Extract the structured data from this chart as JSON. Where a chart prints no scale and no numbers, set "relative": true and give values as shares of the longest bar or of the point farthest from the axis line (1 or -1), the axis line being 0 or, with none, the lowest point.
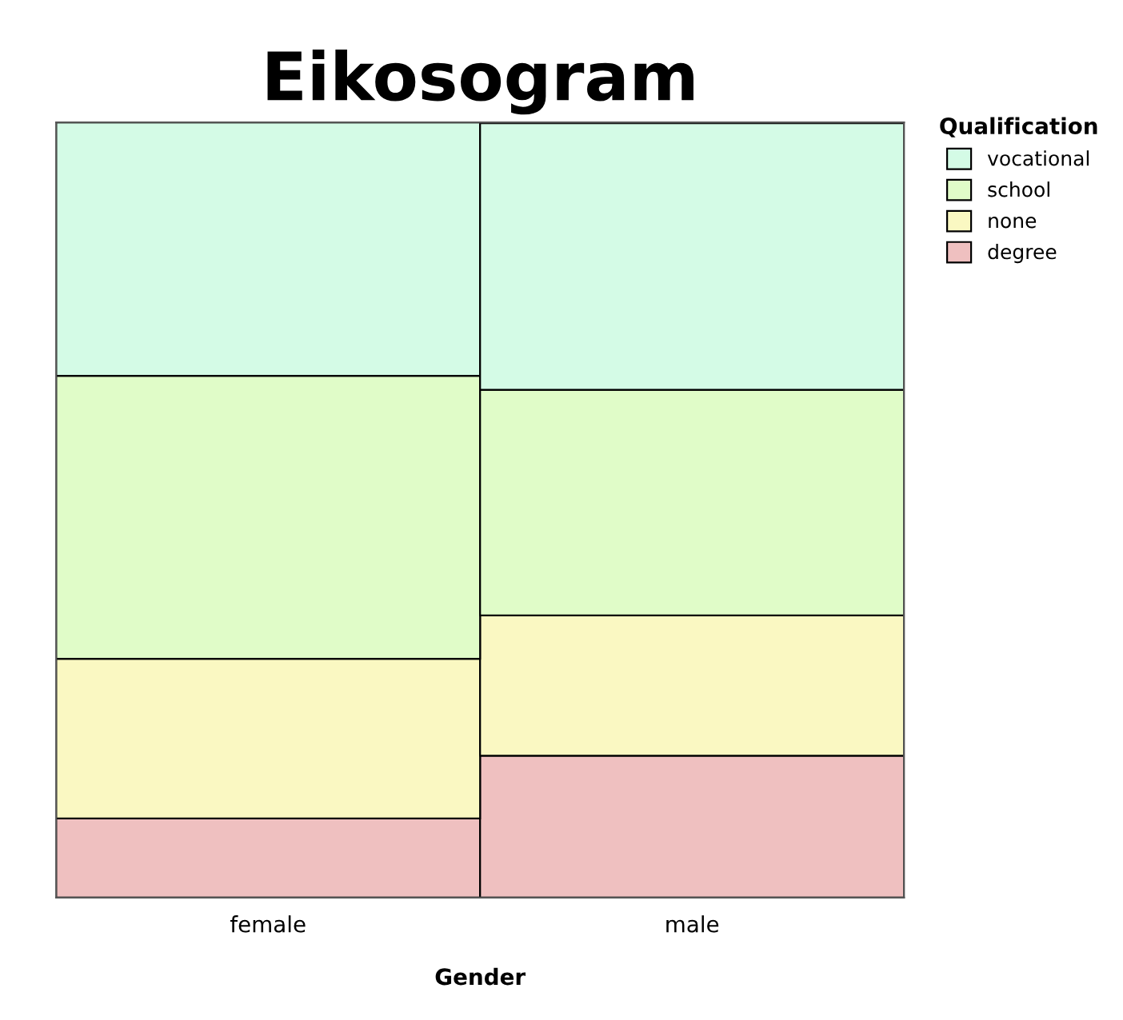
{
  "chart_data": {
    "type": "bar",
    "title": "Eikosogram",
    "xlabel": "Gender",
    "legend_title": "Qualification",
    "categories": [
      "female",
      "male"
    ],
    "stacked": true,
    "relative": true,
    "legend": "top right",
    "grid": false,
    "series": [
      {
        "name": "degree",
        "color": "#efc0c0",
        "values": [
          0.102,
          0.183
        ]
      },
      {
        "name": "none",
        "color": "#faf8c2",
        "values": [
          0.206,
          0.181
        ]
      },
      {
        "name": "school",
        "color": "#e0fcc8",
        "values": [
          0.365,
          0.291
        ]
      },
      {
        "name": "vocational",
        "color": "#d4fbe6",
        "values": [
          0.327,
          0.344
        ]
      }
    ]
  }
}
